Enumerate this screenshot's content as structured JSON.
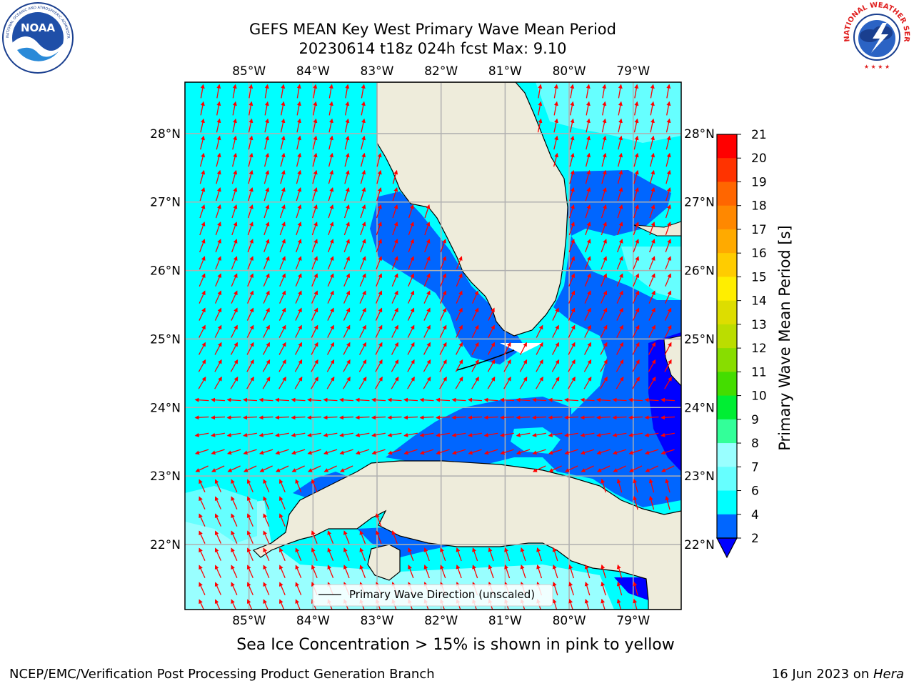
{
  "title": {
    "line1": "GEFS MEAN Key West Primary Wave Mean Period",
    "line2": "20230614 t18z 024h fcst   Max: 9.10"
  },
  "logos": {
    "noaa": {
      "text": "NOAA",
      "ring_text": "NATIONAL OCEANIC AND ATMOSPHERIC ADMINISTRATION · U.S. DEPARTMENT OF COMMERCE"
    },
    "nws": {
      "ring_text": "NATIONAL WEATHER SERVICE"
    }
  },
  "map": {
    "lon_labels": [
      "85°W",
      "84°W",
      "83°W",
      "82°W",
      "81°W",
      "80°W",
      "79°W"
    ],
    "lat_labels": [
      "28°N",
      "27°N",
      "26°N",
      "25°N",
      "24°N",
      "23°N",
      "22°N"
    ],
    "lon_values": [
      -85,
      -84,
      -83,
      -82,
      -81,
      -80,
      -79
    ],
    "lat_values": [
      28,
      27,
      26,
      25,
      24,
      23,
      22
    ],
    "extent": {
      "lon_min": -86,
      "lon_max": -78.25,
      "lat_min": 21.05,
      "lat_max": 28.75
    },
    "legend_label": "Primary Wave Direction (unscaled)",
    "arrow_color": "#ff0000",
    "land_color": "#eeecdb",
    "grid_color": "#b0b0b0"
  },
  "colorbar": {
    "label": "Primary Wave Mean Period [s]",
    "ticks": [
      "2",
      "4",
      "6",
      "7",
      "8",
      "9",
      "10",
      "11",
      "12",
      "13",
      "14",
      "15",
      "16",
      "17",
      "18",
      "19",
      "20",
      "21"
    ],
    "colors": [
      "#0066ff",
      "#00ffff",
      "#66ffff",
      "#99ffff",
      "#33ff99",
      "#00ee33",
      "#44dd00",
      "#88dd00",
      "#bbdd00",
      "#dddd00",
      "#ffee00",
      "#ffcc00",
      "#ffaa00",
      "#ff8800",
      "#ff6600",
      "#ff3300",
      "#ff0000"
    ],
    "extend_color": "#0000ff"
  },
  "note": "Sea Ice Concentration > 15% is shown in pink to yellow",
  "footer": {
    "left": "NCEP/EMC/Verification Post Processing Product Generation Branch",
    "date": "16 Jun 2023 on ",
    "machine": "Hera"
  }
}
